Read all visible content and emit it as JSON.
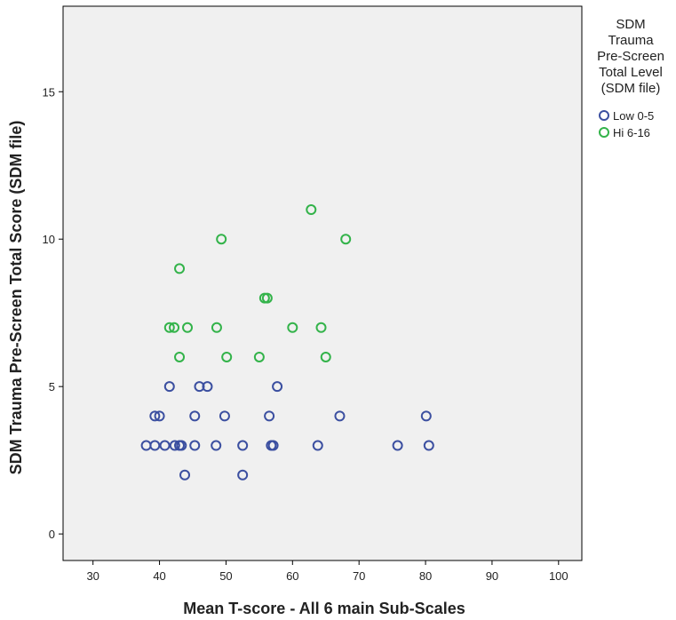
{
  "chart_data": {
    "type": "scatter",
    "xlabel": "Mean T-score - All 6 main Sub-Scales",
    "ylabel": "SDM Trauma Pre-Screen Total Score (SDM file)",
    "xlim": [
      25.5,
      103.5
    ],
    "ylim": [
      -0.9,
      17.9
    ],
    "xticks": [
      30,
      40,
      50,
      60,
      70,
      80,
      90,
      100
    ],
    "yticks": [
      0,
      5,
      10,
      15
    ],
    "grid": false,
    "legend": {
      "placement": "right",
      "title_lines": [
        "SDM",
        "Trauma",
        "Pre-Screen",
        "Total Level",
        "(SDM file)"
      ]
    },
    "series": [
      {
        "name": "Low 0-5",
        "color": "#3b4fa0",
        "points": [
          {
            "x": 38.0,
            "y": 3
          },
          {
            "x": 39.3,
            "y": 3
          },
          {
            "x": 40.8,
            "y": 3
          },
          {
            "x": 42.3,
            "y": 3
          },
          {
            "x": 43.0,
            "y": 3
          },
          {
            "x": 43.3,
            "y": 3
          },
          {
            "x": 45.3,
            "y": 3
          },
          {
            "x": 48.5,
            "y": 3
          },
          {
            "x": 52.5,
            "y": 3
          },
          {
            "x": 56.8,
            "y": 3
          },
          {
            "x": 57.1,
            "y": 3
          },
          {
            "x": 63.8,
            "y": 3
          },
          {
            "x": 75.8,
            "y": 3
          },
          {
            "x": 80.5,
            "y": 3
          },
          {
            "x": 39.3,
            "y": 4
          },
          {
            "x": 40.0,
            "y": 4
          },
          {
            "x": 45.3,
            "y": 4
          },
          {
            "x": 49.8,
            "y": 4
          },
          {
            "x": 56.5,
            "y": 4
          },
          {
            "x": 67.1,
            "y": 4
          },
          {
            "x": 80.1,
            "y": 4
          },
          {
            "x": 41.5,
            "y": 5
          },
          {
            "x": 46.0,
            "y": 5
          },
          {
            "x": 47.2,
            "y": 5
          },
          {
            "x": 57.7,
            "y": 5
          },
          {
            "x": 43.8,
            "y": 2
          },
          {
            "x": 52.5,
            "y": 2
          }
        ]
      },
      {
        "name": "Hi 6-16",
        "color": "#33b34a",
        "points": [
          {
            "x": 43.0,
            "y": 6
          },
          {
            "x": 50.1,
            "y": 6
          },
          {
            "x": 55.0,
            "y": 6
          },
          {
            "x": 65.0,
            "y": 6
          },
          {
            "x": 41.5,
            "y": 7
          },
          {
            "x": 42.2,
            "y": 7
          },
          {
            "x": 44.2,
            "y": 7
          },
          {
            "x": 48.6,
            "y": 7
          },
          {
            "x": 60.0,
            "y": 7
          },
          {
            "x": 64.3,
            "y": 7
          },
          {
            "x": 55.8,
            "y": 8
          },
          {
            "x": 56.2,
            "y": 8
          },
          {
            "x": 43.0,
            "y": 9
          },
          {
            "x": 49.3,
            "y": 10
          },
          {
            "x": 68.0,
            "y": 10
          },
          {
            "x": 62.8,
            "y": 11
          }
        ]
      }
    ]
  }
}
